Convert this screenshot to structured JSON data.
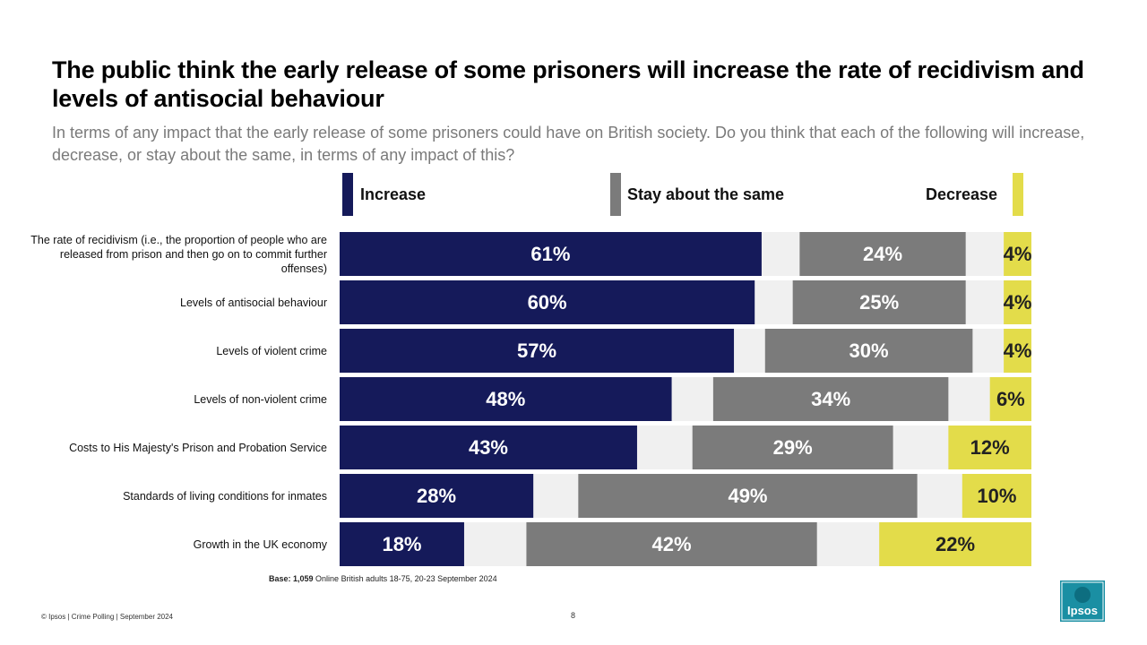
{
  "title": "The public think the early release of some prisoners will increase the rate of recidivism and levels of antisocial behaviour",
  "subtitle": "In terms of any impact that the early release of some prisoners could have on British society. Do you think that each of the following will increase, decrease, or stay about the same, in terms of any impact of this?",
  "base": {
    "bold": "Base: 1,059",
    "text": " Online British adults 18-75, 20-23 September 2024"
  },
  "footer": "© Ipsos | Crime Polling | September 2024",
  "page_number": "8",
  "logo_text": "Ipsos",
  "colors": {
    "increase": "#151a5a",
    "same": "#7b7b7b",
    "decrease": "#e3dc4a",
    "gap": "#f0f0f0"
  },
  "chart_data": {
    "type": "bar",
    "orientation": "horizontal-diverging",
    "categories": [
      "The rate of recidivism (i.e., the proportion of people who are released from prison and then go on to commit further offenses)",
      "Levels of antisocial behaviour",
      "Levels of violent crime",
      "Levels of non-violent crime",
      "Costs to His Majesty's Prison and Probation Service",
      "Standards of living conditions for inmates",
      "Growth in the UK economy"
    ],
    "series": [
      {
        "name": "Increase",
        "values": [
          61,
          60,
          57,
          48,
          43,
          28,
          18
        ]
      },
      {
        "name": "Stay about the same",
        "values": [
          24,
          25,
          30,
          34,
          29,
          49,
          42
        ]
      },
      {
        "name": "Decrease",
        "values": [
          4,
          4,
          4,
          6,
          12,
          10,
          22
        ]
      }
    ],
    "value_suffix": "%",
    "legend": [
      "Increase",
      "Stay about the same",
      "Decrease"
    ],
    "legend_position": "top",
    "xlim": [
      0,
      100
    ]
  }
}
